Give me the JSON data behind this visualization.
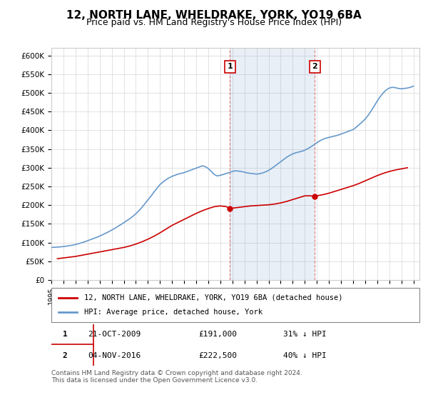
{
  "title": "12, NORTH LANE, WHELDRAKE, YORK, YO19 6BA",
  "subtitle": "Price paid vs. HM Land Registry's House Price Index (HPI)",
  "title_fontsize": 11,
  "subtitle_fontsize": 9,
  "ylim": [
    0,
    620000
  ],
  "yticks": [
    0,
    50000,
    100000,
    150000,
    200000,
    250000,
    300000,
    350000,
    400000,
    450000,
    500000,
    550000,
    600000
  ],
  "ytick_labels": [
    "£0",
    "£50K",
    "£100K",
    "£150K",
    "£200K",
    "£250K",
    "£300K",
    "£350K",
    "£400K",
    "£450K",
    "£500K",
    "£550K",
    "£600K"
  ],
  "xlim_start": 1995.0,
  "xlim_end": 2025.5,
  "transaction1_x": 2009.8,
  "transaction1_y": 191000,
  "transaction2_x": 2016.84,
  "transaction2_y": 222500,
  "shade_x1": 2009.8,
  "shade_x2": 2016.84,
  "property_color": "#cc0000",
  "hpi_color": "#6699cc",
  "legend_label1": "12, NORTH LANE, WHELDRAKE, YORK, YO19 6BA (detached house)",
  "legend_label2": "HPI: Average price, detached house, York",
  "table_row1": [
    "1",
    "21-OCT-2009",
    "£191,000",
    "31% ↓ HPI"
  ],
  "table_row2": [
    "2",
    "04-NOV-2016",
    "£222,500",
    "40% ↓ HPI"
  ],
  "footer": "Contains HM Land Registry data © Crown copyright and database right 2024.\nThis data is licensed under the Open Government Licence v3.0.",
  "hpi_years": [
    1995,
    1995.25,
    1995.5,
    1995.75,
    1996,
    1996.25,
    1996.5,
    1996.75,
    1997,
    1997.25,
    1997.5,
    1997.75,
    1998,
    1998.25,
    1998.5,
    1998.75,
    1999,
    1999.25,
    1999.5,
    1999.75,
    2000,
    2000.25,
    2000.5,
    2000.75,
    2001,
    2001.25,
    2001.5,
    2001.75,
    2002,
    2002.25,
    2002.5,
    2002.75,
    2003,
    2003.25,
    2003.5,
    2003.75,
    2004,
    2004.25,
    2004.5,
    2004.75,
    2005,
    2005.25,
    2005.5,
    2005.75,
    2006,
    2006.25,
    2006.5,
    2006.75,
    2007,
    2007.25,
    2007.5,
    2007.75,
    2008,
    2008.25,
    2008.5,
    2008.75,
    2009,
    2009.25,
    2009.5,
    2009.75,
    2010,
    2010.25,
    2010.5,
    2010.75,
    2011,
    2011.25,
    2011.5,
    2011.75,
    2012,
    2012.25,
    2012.5,
    2012.75,
    2013,
    2013.25,
    2013.5,
    2013.75,
    2014,
    2014.25,
    2014.5,
    2014.75,
    2015,
    2015.25,
    2015.5,
    2015.75,
    2016,
    2016.25,
    2016.5,
    2016.75,
    2017,
    2017.25,
    2017.5,
    2017.75,
    2018,
    2018.25,
    2018.5,
    2018.75,
    2019,
    2019.25,
    2019.5,
    2019.75,
    2020,
    2020.25,
    2020.5,
    2020.75,
    2021,
    2021.25,
    2021.5,
    2021.75,
    2022,
    2022.25,
    2022.5,
    2022.75,
    2023,
    2023.25,
    2023.5,
    2023.75,
    2024,
    2024.25,
    2024.5,
    2024.75,
    2025
  ],
  "hpi_values": [
    87000,
    87500,
    88000,
    88500,
    89500,
    90500,
    92000,
    93000,
    95000,
    97000,
    99500,
    102000,
    105000,
    108000,
    111000,
    114000,
    117500,
    121000,
    125000,
    129000,
    133500,
    138000,
    143000,
    148000,
    153000,
    158500,
    164000,
    170000,
    177000,
    185000,
    194000,
    204000,
    214000,
    224000,
    235000,
    245000,
    255000,
    262000,
    268000,
    273000,
    277000,
    280000,
    283000,
    285000,
    287000,
    290000,
    293000,
    296000,
    299000,
    302000,
    305000,
    303000,
    298000,
    290000,
    282000,
    278000,
    280000,
    282000,
    285000,
    287000,
    290000,
    292000,
    291000,
    290000,
    288000,
    286000,
    285000,
    284000,
    283000,
    284000,
    286000,
    289000,
    293000,
    298000,
    304000,
    310000,
    316000,
    322000,
    328000,
    333000,
    337000,
    340000,
    342000,
    344000,
    347000,
    351000,
    356000,
    361000,
    367000,
    372000,
    376000,
    379000,
    381000,
    383000,
    385000,
    387000,
    390000,
    393000,
    396000,
    399000,
    402000,
    408000,
    415000,
    422000,
    430000,
    440000,
    452000,
    465000,
    478000,
    490000,
    500000,
    508000,
    513000,
    515000,
    514000,
    512000,
    511000,
    512000,
    513000,
    515000,
    518000
  ],
  "prop_years": [
    1995.5,
    1996.0,
    1996.5,
    1997.0,
    1997.5,
    1998.0,
    1998.5,
    1999.0,
    1999.5,
    2000.0,
    2000.5,
    2001.0,
    2001.5,
    2002.0,
    2002.5,
    2003.0,
    2003.5,
    2004.0,
    2004.5,
    2005.0,
    2005.5,
    2006.0,
    2006.5,
    2007.0,
    2007.5,
    2008.0,
    2008.5,
    2009.0,
    2009.5,
    2009.8,
    2010.0,
    2010.5,
    2011.0,
    2011.5,
    2012.0,
    2012.5,
    2013.0,
    2013.5,
    2014.0,
    2014.5,
    2015.0,
    2015.5,
    2016.0,
    2016.5,
    2016.84,
    2017.0,
    2017.5,
    2018.0,
    2018.5,
    2019.0,
    2019.5,
    2020.0,
    2020.5,
    2021.0,
    2021.5,
    2022.0,
    2022.5,
    2023.0,
    2023.5,
    2024.0,
    2024.5
  ],
  "prop_values": [
    57000,
    59000,
    61000,
    63000,
    66000,
    69000,
    72000,
    75000,
    78000,
    81000,
    84000,
    87000,
    91000,
    96000,
    102000,
    109000,
    117000,
    126000,
    136000,
    146000,
    154000,
    162000,
    170000,
    178000,
    185000,
    191000,
    196000,
    198000,
    196000,
    191000,
    192000,
    194000,
    196000,
    198000,
    199000,
    200000,
    201000,
    203000,
    206000,
    210000,
    215000,
    220000,
    225000,
    225000,
    222500,
    225000,
    228000,
    232000,
    237000,
    242000,
    247000,
    252000,
    258000,
    265000,
    272000,
    279000,
    285000,
    290000,
    294000,
    297000,
    300000
  ]
}
